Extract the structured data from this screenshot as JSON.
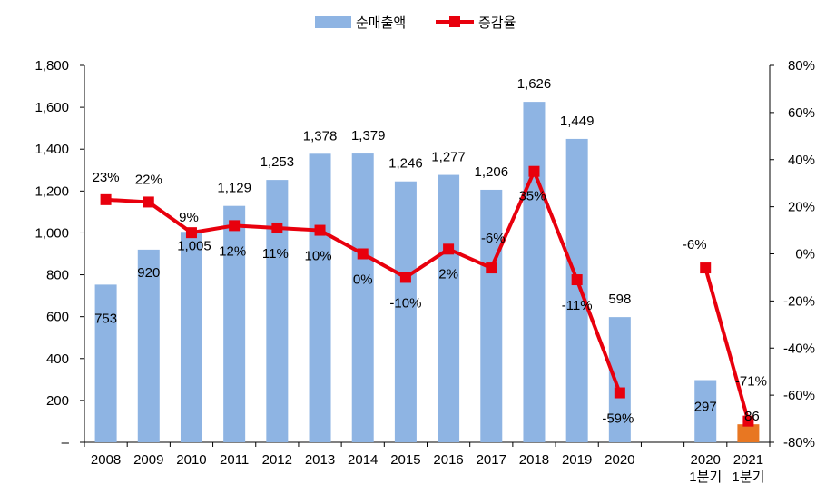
{
  "chart_data": {
    "type": "bar",
    "categories": [
      "2008",
      "2009",
      "2010",
      "2011",
      "2012",
      "2013",
      "2014",
      "2015",
      "2016",
      "2017",
      "2018",
      "2019",
      "2020",
      "",
      "2020\n1분기",
      "2021\n1분기"
    ],
    "series": [
      {
        "name": "순매출액",
        "type": "bar",
        "axis": "left",
        "values": [
          753,
          920,
          1005,
          1129,
          1253,
          1378,
          1379,
          1246,
          1277,
          1206,
          1626,
          1449,
          598,
          null,
          297,
          86
        ],
        "labels": [
          "753",
          "920",
          "1,005",
          "1,129",
          "1,253",
          "1,378",
          "1,379",
          "1,246",
          "1,277",
          "1,206",
          "1,626",
          "1,449",
          "598",
          "",
          "297",
          "86"
        ]
      },
      {
        "name": "증감율",
        "type": "line",
        "axis": "right",
        "values": [
          23,
          22,
          9,
          12,
          11,
          10,
          0,
          -10,
          2,
          -6,
          35,
          -11,
          -59,
          null,
          -6,
          -71
        ],
        "labels": [
          "23%",
          "22%",
          "9%",
          "12%",
          "11%",
          "10%",
          "0%",
          "-10%",
          "2%",
          "-6%",
          "35%",
          "-11%",
          "-59%",
          "",
          "-6%",
          "-71%"
        ]
      }
    ],
    "yleft": {
      "ylim": [
        0,
        1800
      ],
      "ticks": [
        "–",
        "200",
        "400",
        "600",
        "800",
        "1,000",
        "1,200",
        "1,400",
        "1,600",
        "1,800"
      ]
    },
    "yright": {
      "ylim": [
        -80,
        80
      ],
      "ticks": [
        "-80%",
        "-60%",
        "-40%",
        "-20%",
        "0%",
        "20%",
        "40%",
        "60%",
        "80%"
      ]
    },
    "legend": "top-center",
    "grid": false,
    "colors": {
      "bar": "#8EB4E3",
      "bar_highlight": "#E87722",
      "line": "#E8000D"
    },
    "highlight_index": 15
  }
}
